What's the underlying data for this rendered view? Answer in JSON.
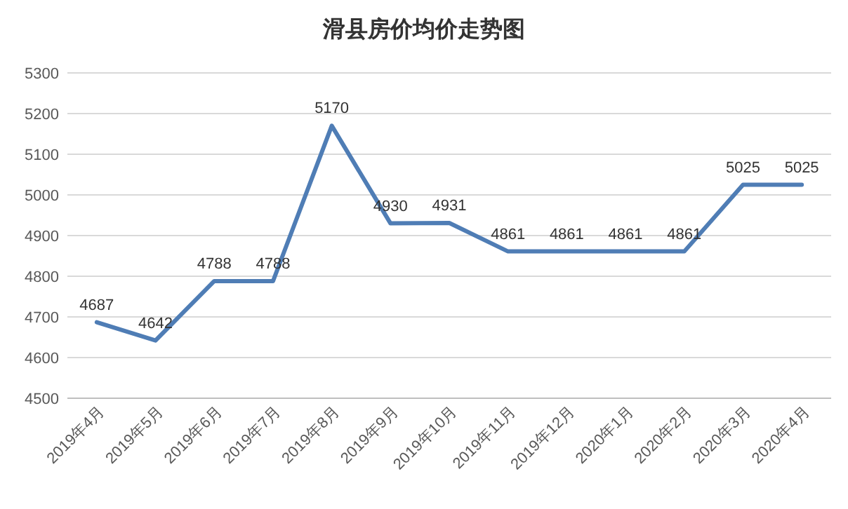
{
  "chart_data": {
    "type": "line",
    "title": "滑县房价均价走势图",
    "categories": [
      "2019年4月",
      "2019年5月",
      "2019年6月",
      "2019年7月",
      "2019年8月",
      "2019年9月",
      "2019年10月",
      "2019年11月",
      "2019年12月",
      "2020年1月",
      "2020年2月",
      "2020年3月",
      "2020年4月"
    ],
    "values": [
      4687,
      4642,
      4788,
      4788,
      5170,
      4930,
      4931,
      4861,
      4861,
      4861,
      4861,
      5025,
      5025
    ],
    "color": "#4f7db5",
    "ylim": [
      4500,
      5300
    ],
    "yticks": [
      4500,
      4600,
      4700,
      4800,
      4900,
      5000,
      5100,
      5200,
      5300
    ],
    "grid": "y",
    "data_labels": true
  }
}
